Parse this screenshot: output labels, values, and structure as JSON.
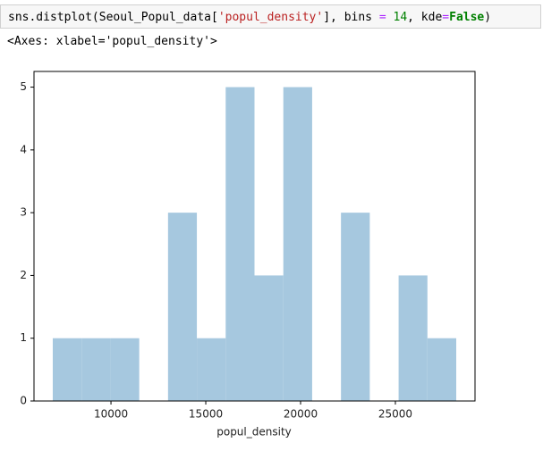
{
  "code_tokens": [
    "sns.distplot(Seoul_Popul_data[",
    "'popul_density'",
    "], bins ",
    "=",
    " ",
    "14",
    ", kde",
    "=",
    "False",
    ")"
  ],
  "output_text": "<Axes: xlabel='popul_density'>",
  "chart_data": {
    "type": "histogram",
    "x_label": "popul_density",
    "bins": [
      6930,
      8450,
      9970,
      11490,
      13010,
      14530,
      16050,
      17570,
      19090,
      20610,
      22130,
      23650,
      25170,
      26690,
      28210
    ],
    "counts": [
      1,
      1,
      1,
      0,
      3,
      1,
      5,
      2,
      5,
      0,
      3,
      0,
      2,
      1
    ],
    "color": "#a6c8df",
    "xlim": [
      5940,
      29200
    ],
    "xticks": [
      10000,
      15000,
      20000,
      25000
    ],
    "ylim": [
      0,
      5.25
    ],
    "yticks": [
      0,
      1,
      2,
      3,
      4,
      5
    ]
  }
}
